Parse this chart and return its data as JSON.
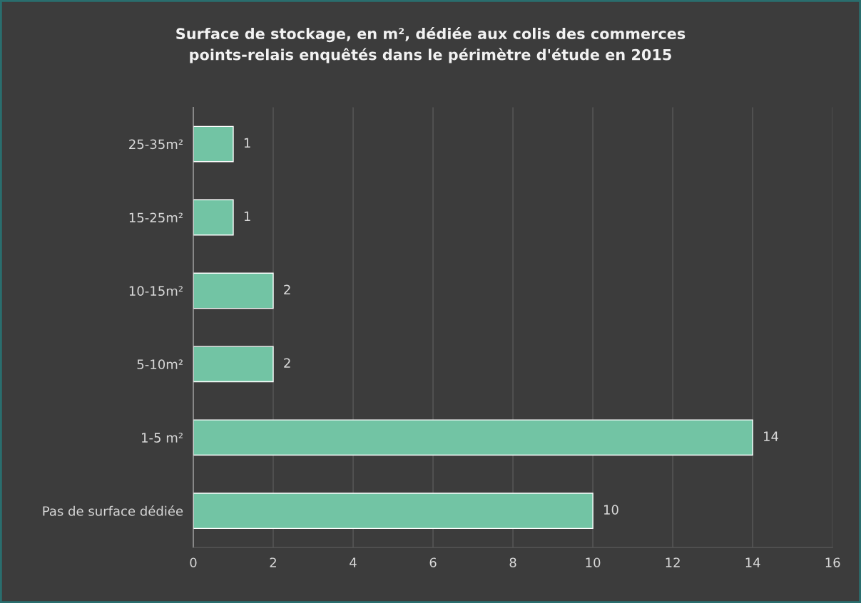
{
  "chart_data": {
    "type": "bar",
    "orientation": "horizontal",
    "title": "Surface de stockage, en m², dédiée aux colis des commerces\npoints-relais enquêtés dans le périmètre d'étude en 2015",
    "categories": [
      "25-35m²",
      "15-25m²",
      "10-15m²",
      "5-10m²",
      "1-5 m²",
      "Pas de surface dédiée"
    ],
    "values": [
      1,
      1,
      2,
      2,
      14,
      10
    ],
    "color": "#72c4a4",
    "xlim": [
      0,
      16
    ],
    "xticks": [
      0,
      2,
      4,
      6,
      8,
      10,
      12,
      14,
      16
    ],
    "grid": "x",
    "data_labels": true,
    "legend": false
  }
}
